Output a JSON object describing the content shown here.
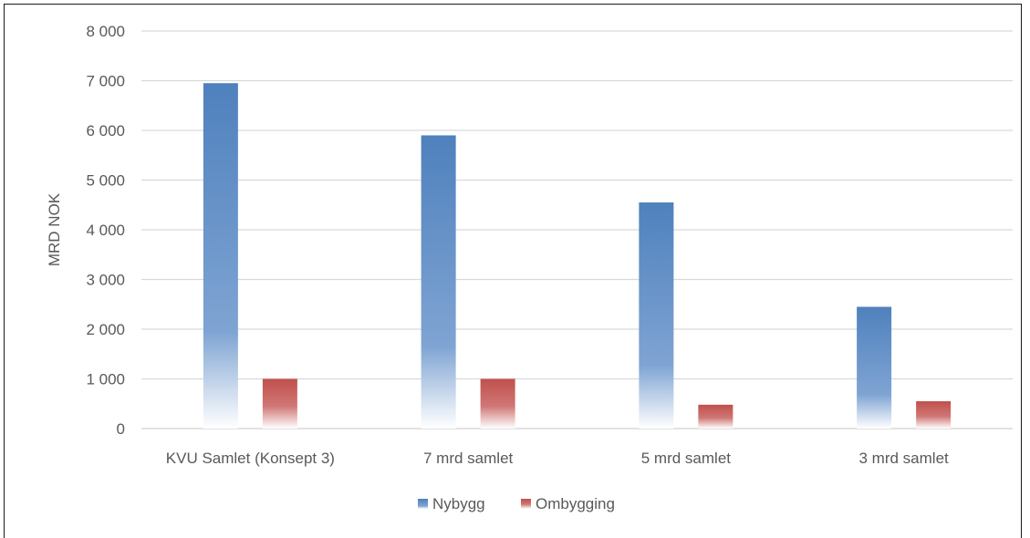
{
  "chart_data": {
    "type": "bar",
    "title": "",
    "xlabel": "",
    "ylabel": "MRD NOK",
    "ylim": [
      0,
      8000
    ],
    "yticks": [
      0,
      1000,
      2000,
      3000,
      4000,
      5000,
      6000,
      7000,
      8000
    ],
    "ytick_labels": [
      "0",
      "1 000",
      "2 000",
      "3 000",
      "4 000",
      "5 000",
      "6 000",
      "7 000",
      "8 000"
    ],
    "categories": [
      "KVU Samlet (Konsept 3)",
      "7 mrd samlet",
      "5 mrd samlet",
      "3 mrd samlet"
    ],
    "series": [
      {
        "name": "Nybygg",
        "values": [
          6950,
          5900,
          4550,
          2450
        ],
        "color": "#4f81bd"
      },
      {
        "name": "Ombygging",
        "values": [
          1000,
          1000,
          480,
          550
        ],
        "color": "#c0504d"
      }
    ],
    "grid": true,
    "legend_position": "bottom"
  }
}
